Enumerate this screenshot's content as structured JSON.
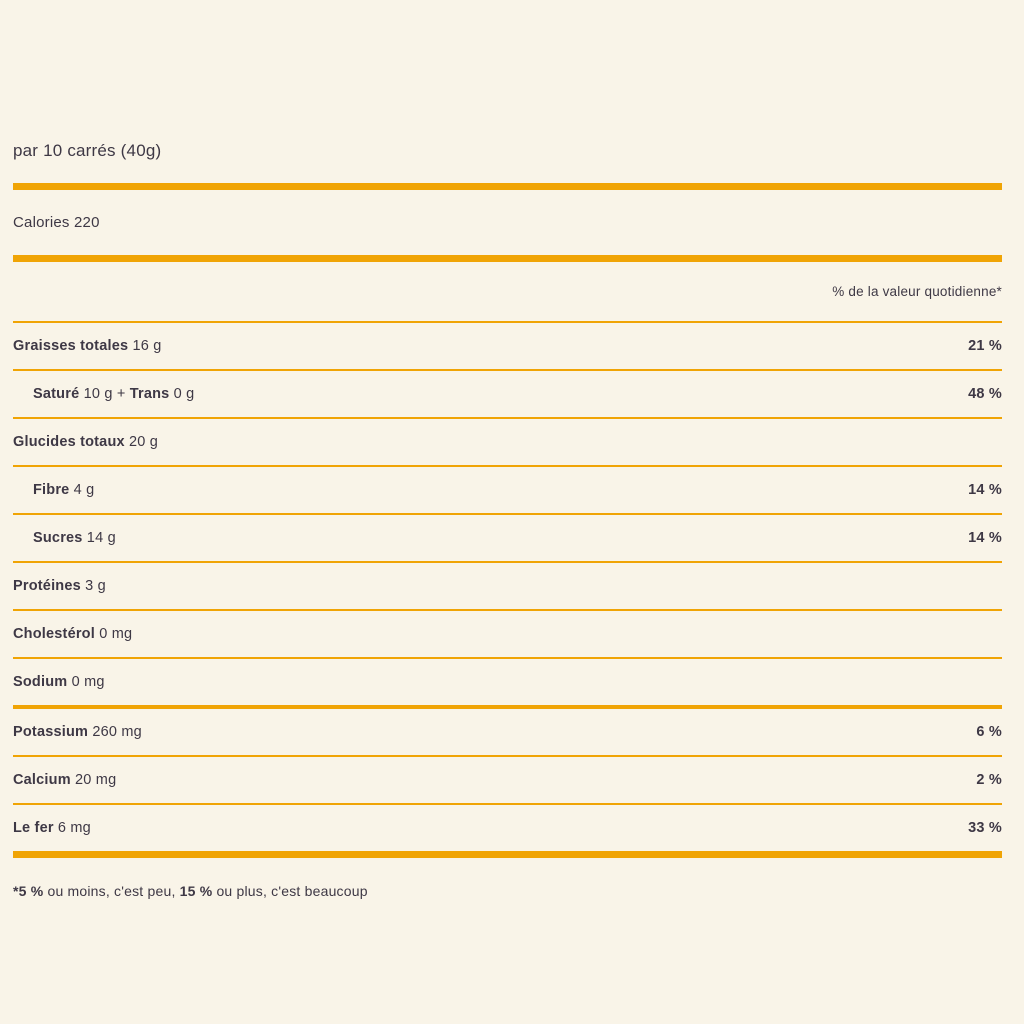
{
  "panel": {
    "serving": "par 10 carrés (40g)",
    "calories": "Calories 220",
    "dv_header": "% de la valeur quotidienne*"
  },
  "rows": [
    {
      "segments": [
        {
          "t": "Graisses totales",
          "b": true
        },
        {
          "t": " 16 g",
          "b": false
        }
      ],
      "percent": "21 %",
      "indent": false,
      "divider_after": "thin"
    },
    {
      "segments": [
        {
          "t": "Saturé",
          "b": true
        },
        {
          "t": " 10 g + ",
          "b": false
        },
        {
          "t": "Trans",
          "b": true
        },
        {
          "t": " 0 g",
          "b": false
        }
      ],
      "percent": "48 %",
      "indent": true,
      "divider_after": "thin"
    },
    {
      "segments": [
        {
          "t": "Glucides totaux",
          "b": true
        },
        {
          "t": " 20 g",
          "b": false
        }
      ],
      "percent": "",
      "indent": false,
      "divider_after": "thin"
    },
    {
      "segments": [
        {
          "t": "Fibre",
          "b": true
        },
        {
          "t": " 4 g",
          "b": false
        }
      ],
      "percent": "14 %",
      "indent": true,
      "divider_after": "thin"
    },
    {
      "segments": [
        {
          "t": "Sucres",
          "b": true
        },
        {
          "t": " 14 g",
          "b": false
        }
      ],
      "percent": "14 %",
      "indent": true,
      "divider_after": "thin"
    },
    {
      "segments": [
        {
          "t": "Protéines",
          "b": true
        },
        {
          "t": " 3 g",
          "b": false
        }
      ],
      "percent": "",
      "indent": false,
      "divider_after": "thin"
    },
    {
      "segments": [
        {
          "t": "Cholestérol",
          "b": true
        },
        {
          "t": " 0 mg",
          "b": false
        }
      ],
      "percent": "",
      "indent": false,
      "divider_after": "thin"
    },
    {
      "segments": [
        {
          "t": "Sodium",
          "b": true
        },
        {
          "t": " 0 mg",
          "b": false
        }
      ],
      "percent": "",
      "indent": false,
      "divider_after": "medium"
    },
    {
      "segments": [
        {
          "t": "Potassium",
          "b": true
        },
        {
          "t": " 260 mg",
          "b": false
        }
      ],
      "percent": "6 %",
      "indent": false,
      "divider_after": "thin"
    },
    {
      "segments": [
        {
          "t": "Calcium",
          "b": true
        },
        {
          "t": " 20 mg",
          "b": false
        }
      ],
      "percent": "2 %",
      "indent": false,
      "divider_after": "thin"
    },
    {
      "segments": [
        {
          "t": "Le fer",
          "b": true
        },
        {
          "t": " 6 mg",
          "b": false
        }
      ],
      "percent": "33 %",
      "indent": false,
      "divider_after": "thick"
    }
  ],
  "footnote": {
    "segments": [
      {
        "t": "*5 %",
        "b": true
      },
      {
        "t": " ou moins, c'est peu, ",
        "b": false
      },
      {
        "t": "15 %",
        "b": true
      },
      {
        "t": " ou plus, c'est beaucoup",
        "b": false
      }
    ]
  },
  "colors": {
    "background": "#F9F4E8",
    "rule": "#F0A405",
    "text": "#3E3845"
  }
}
